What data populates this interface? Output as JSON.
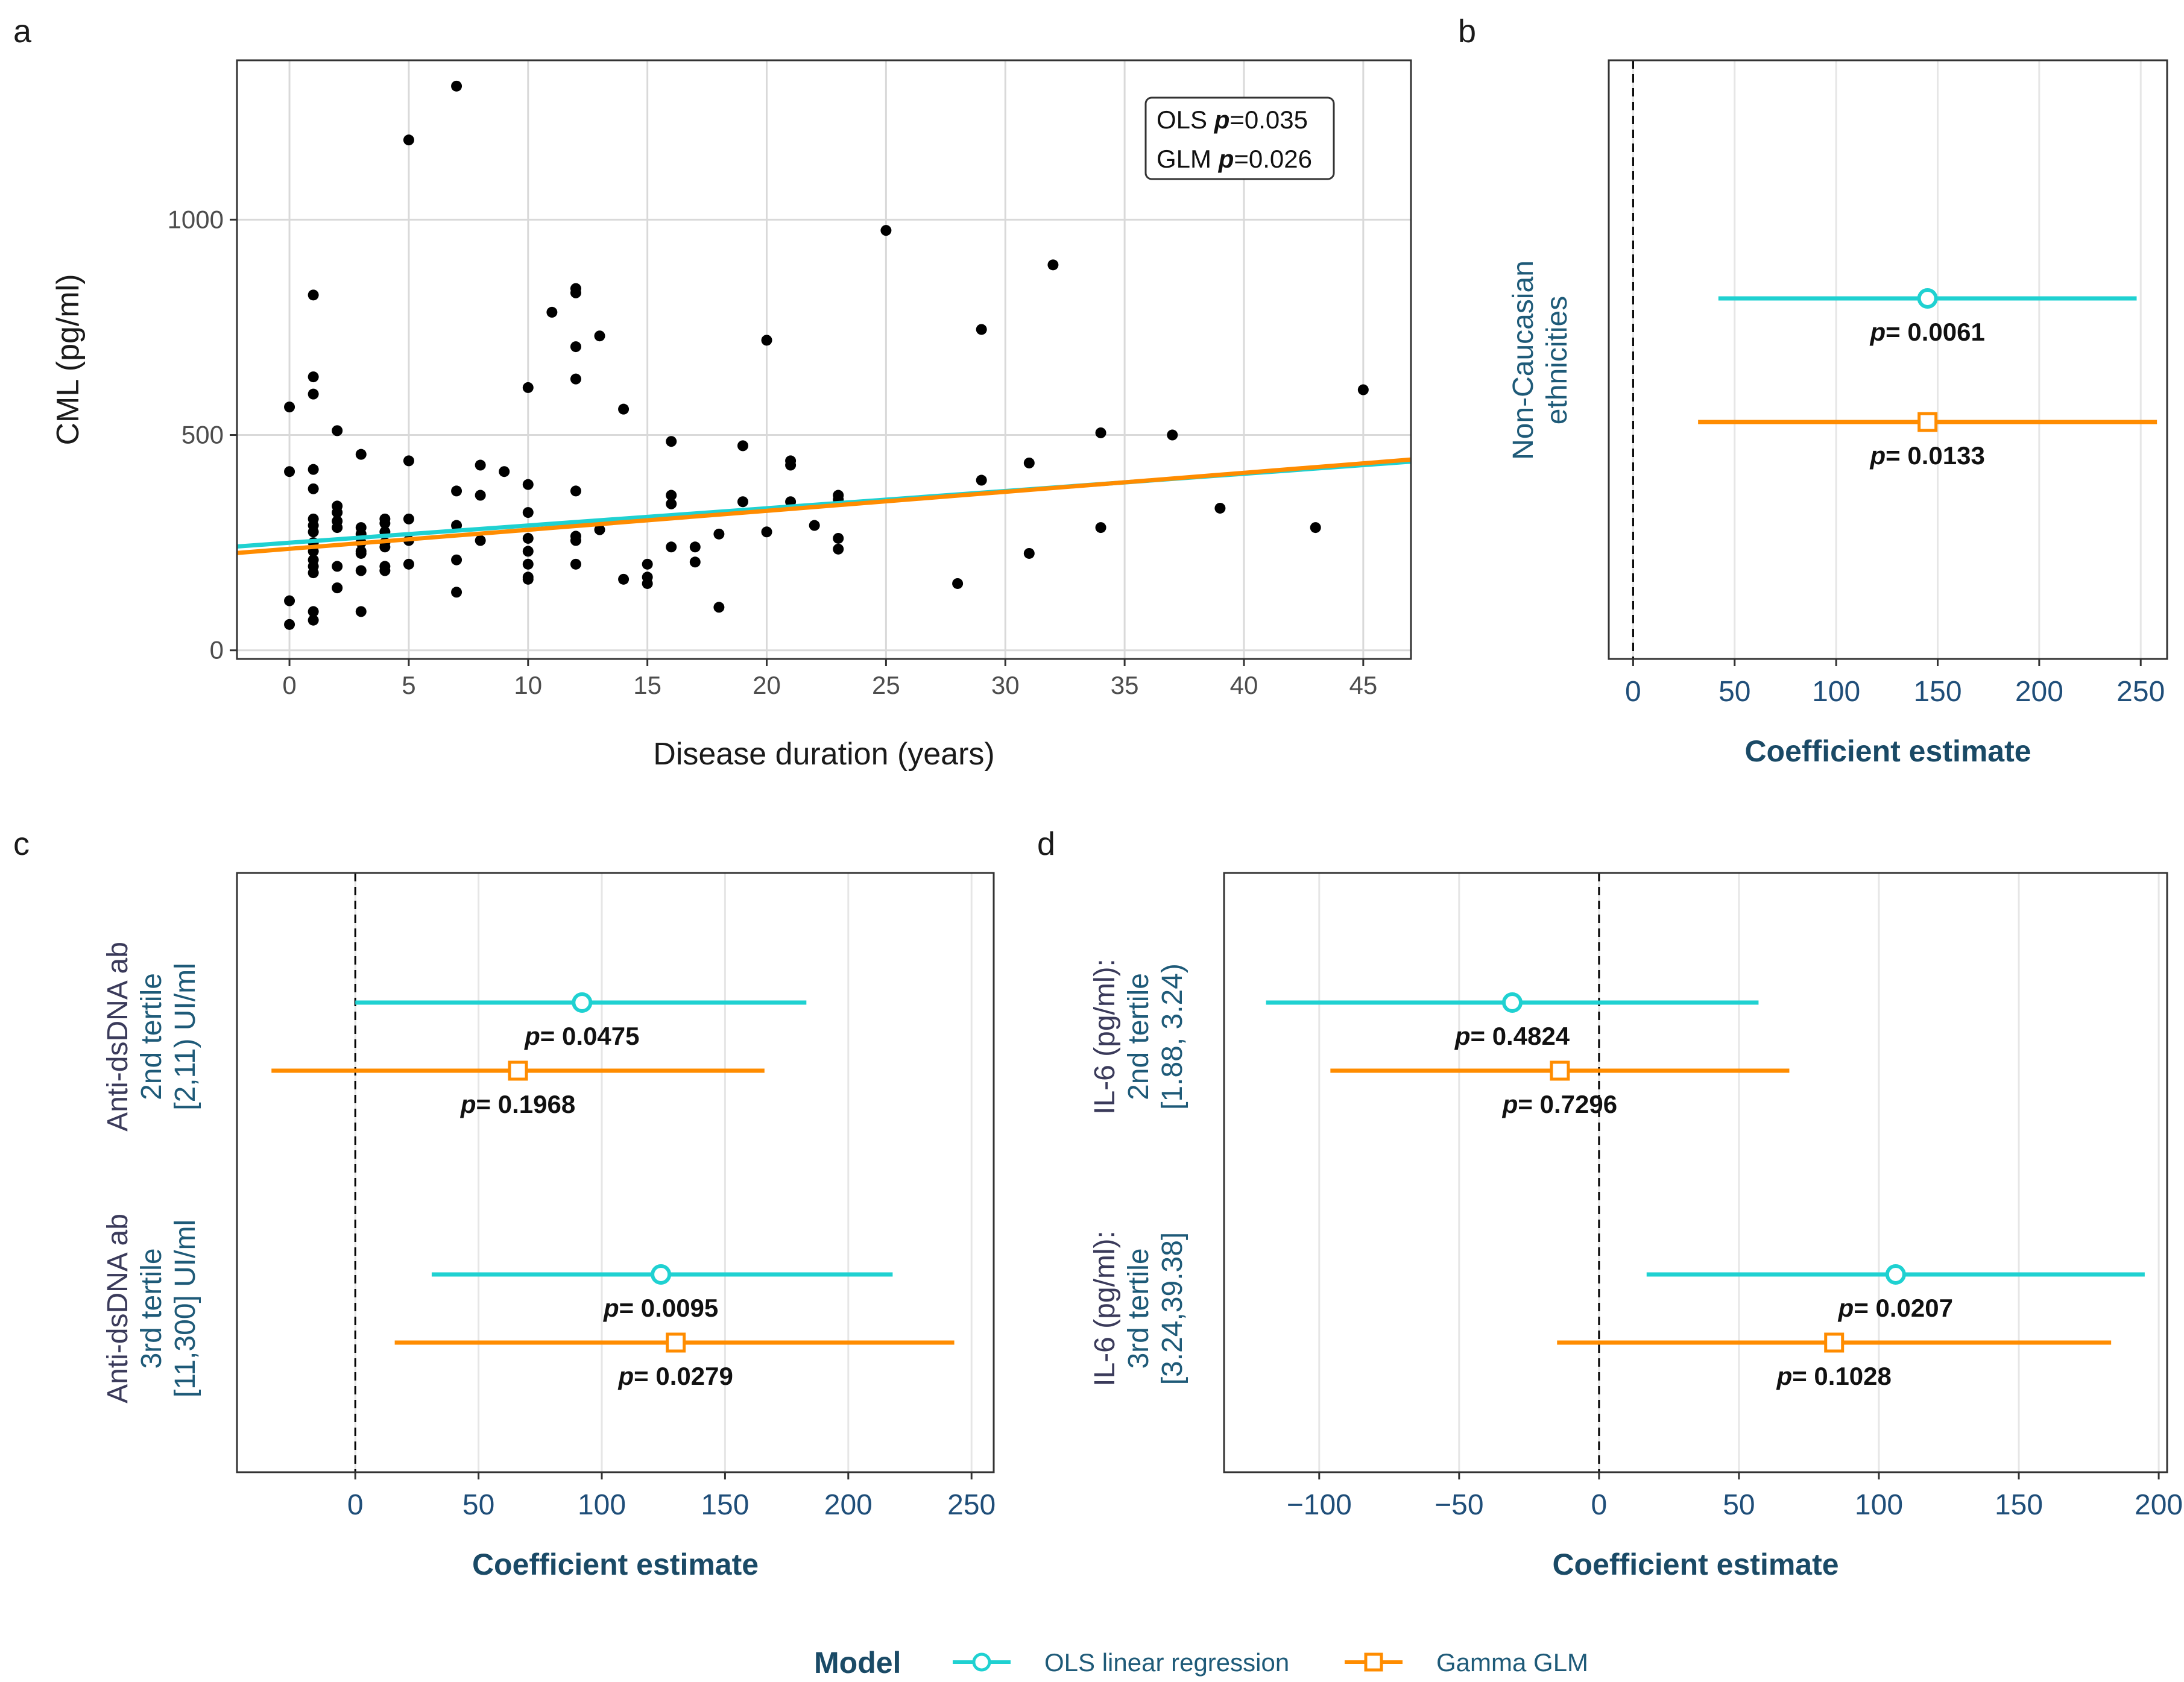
{
  "colors": {
    "ols": "#1fd1d1",
    "glm": "#ff8c00",
    "grid": "#d9d9d9",
    "point": "#000000"
  },
  "chart_data": [
    {
      "panel": "a",
      "type": "scatter",
      "xlabel": "Disease duration (years)",
      "ylabel": "CML (pg/ml)",
      "xlim": [
        -2.2,
        47
      ],
      "ylim": [
        -20,
        1370
      ],
      "xticks": [
        0,
        5,
        10,
        15,
        20,
        25,
        30,
        35,
        40,
        45
      ],
      "yticks": [
        0,
        500,
        1000
      ],
      "annotation": {
        "line1_model": "OLS",
        "line1_p": "p=0.035",
        "line2_model": "GLM",
        "line2_p": "p=0.026"
      },
      "points": [
        [
          0,
          565
        ],
        [
          0,
          415
        ],
        [
          0,
          115
        ],
        [
          0,
          60
        ],
        [
          1,
          825
        ],
        [
          1,
          635
        ],
        [
          1,
          595
        ],
        [
          1,
          420
        ],
        [
          1,
          375
        ],
        [
          1,
          305
        ],
        [
          1,
          290
        ],
        [
          1,
          275
        ],
        [
          1,
          250
        ],
        [
          1,
          230
        ],
        [
          1,
          210
        ],
        [
          1,
          195
        ],
        [
          1,
          180
        ],
        [
          1,
          90
        ],
        [
          1,
          70
        ],
        [
          2,
          510
        ],
        [
          2,
          335
        ],
        [
          2,
          320
        ],
        [
          2,
          300
        ],
        [
          2,
          285
        ],
        [
          2,
          195
        ],
        [
          2,
          145
        ],
        [
          3,
          455
        ],
        [
          3,
          285
        ],
        [
          3,
          270
        ],
        [
          3,
          250
        ],
        [
          3,
          230
        ],
        [
          3,
          225
        ],
        [
          3,
          185
        ],
        [
          3,
          90
        ],
        [
          4,
          305
        ],
        [
          4,
          295
        ],
        [
          4,
          275
        ],
        [
          4,
          250
        ],
        [
          4,
          240
        ],
        [
          4,
          195
        ],
        [
          4,
          185
        ],
        [
          5,
          1185
        ],
        [
          5,
          440
        ],
        [
          5,
          305
        ],
        [
          5,
          255
        ],
        [
          5,
          200
        ],
        [
          7,
          1310
        ],
        [
          7,
          370
        ],
        [
          7,
          290
        ],
        [
          7,
          210
        ],
        [
          7,
          135
        ],
        [
          8,
          430
        ],
        [
          8,
          360
        ],
        [
          8,
          255
        ],
        [
          9,
          415
        ],
        [
          10,
          610
        ],
        [
          10,
          385
        ],
        [
          10,
          320
        ],
        [
          10,
          260
        ],
        [
          10,
          230
        ],
        [
          10,
          200
        ],
        [
          10,
          170
        ],
        [
          10,
          165
        ],
        [
          11,
          785
        ],
        [
          12,
          840
        ],
        [
          12,
          830
        ],
        [
          12,
          705
        ],
        [
          12,
          630
        ],
        [
          12,
          370
        ],
        [
          12,
          265
        ],
        [
          12,
          255
        ],
        [
          12,
          200
        ],
        [
          13,
          730
        ],
        [
          13,
          280
        ],
        [
          14,
          560
        ],
        [
          14,
          165
        ],
        [
          15,
          200
        ],
        [
          15,
          170
        ],
        [
          15,
          155
        ],
        [
          16,
          485
        ],
        [
          16,
          360
        ],
        [
          16,
          340
        ],
        [
          16,
          240
        ],
        [
          17,
          240
        ],
        [
          17,
          205
        ],
        [
          18,
          270
        ],
        [
          18,
          100
        ],
        [
          19,
          475
        ],
        [
          19,
          345
        ],
        [
          20,
          720
        ],
        [
          20,
          275
        ],
        [
          21,
          440
        ],
        [
          21,
          430
        ],
        [
          21,
          345
        ],
        [
          22,
          290
        ],
        [
          23,
          360
        ],
        [
          23,
          350
        ],
        [
          23,
          260
        ],
        [
          23,
          235
        ],
        [
          25,
          975
        ],
        [
          28,
          155
        ],
        [
          29,
          745
        ],
        [
          29,
          395
        ],
        [
          31,
          435
        ],
        [
          31,
          225
        ],
        [
          32,
          895
        ],
        [
          34,
          505
        ],
        [
          34,
          285
        ],
        [
          37,
          500
        ],
        [
          39,
          330
        ],
        [
          43,
          285
        ],
        [
          45,
          605
        ]
      ],
      "fit_lines": [
        {
          "name": "OLS",
          "x": [
            -2.2,
            47
          ],
          "y": [
            241,
            438
          ]
        },
        {
          "name": "GLM",
          "x": [
            -2.2,
            47
          ],
          "y": [
            226,
            443
          ]
        }
      ]
    },
    {
      "panel": "b",
      "type": "forest",
      "xlabel": "Coefficient estimate",
      "xlim": [
        -12,
        263
      ],
      "xticks": [
        0,
        50,
        100,
        150,
        200,
        250
      ],
      "groups": [
        {
          "label_lines": [
            "Non-Caucasian",
            "ethnicities"
          ],
          "estimates": [
            {
              "model": "OLS",
              "est": 145,
              "lo": 42,
              "hi": 248,
              "p_label": "p",
              "p_value": "= 0.0061"
            },
            {
              "model": "GLM",
              "est": 145,
              "lo": 32,
              "hi": 258,
              "p_label": "p",
              "p_value": "= 0.0133"
            }
          ]
        }
      ]
    },
    {
      "panel": "c",
      "type": "forest",
      "xlabel": "Coefficient estimate",
      "xlim": [
        -48,
        259
      ],
      "xticks": [
        0,
        50,
        100,
        150,
        200,
        250
      ],
      "groups": [
        {
          "label_lines": [
            "Anti-dsDNA ab",
            "2nd tertile",
            "[2,11) UI/ml"
          ],
          "estimates": [
            {
              "model": "OLS",
              "est": 92,
              "lo": 0,
              "hi": 183,
              "p_label": "p",
              "p_value": "= 0.0475"
            },
            {
              "model": "GLM",
              "est": 66,
              "lo": -34,
              "hi": 166,
              "p_label": "p",
              "p_value": "= 0.1968"
            }
          ]
        },
        {
          "label_lines": [
            "Anti-dsDNA ab",
            "3rd tertile",
            "[11,300] UI/ml"
          ],
          "estimates": [
            {
              "model": "OLS",
              "est": 124,
              "lo": 31,
              "hi": 218,
              "p_label": "p",
              "p_value": "= 0.0095"
            },
            {
              "model": "GLM",
              "est": 130,
              "lo": 16,
              "hi": 243,
              "p_label": "p",
              "p_value": "= 0.0279"
            }
          ]
        }
      ]
    },
    {
      "panel": "d",
      "type": "forest",
      "xlabel": "Coefficient estimate",
      "xlim": [
        -134,
        203
      ],
      "xticks": [
        -100,
        -50,
        0,
        50,
        100,
        150,
        200
      ],
      "xtick_labels": [
        "−100",
        "−50",
        "0",
        "50",
        "100",
        "150",
        "200"
      ],
      "groups": [
        {
          "label_lines": [
            "IL-6  (pg/ml):",
            "2nd tertile",
            "[1.88,  3.24)"
          ],
          "estimates": [
            {
              "model": "OLS",
              "est": -31,
              "lo": -119,
              "hi": 57,
              "p_label": "p",
              "p_value": "= 0.4824"
            },
            {
              "model": "GLM",
              "est": -14,
              "lo": -96,
              "hi": 68,
              "p_label": "p",
              "p_value": "= 0.7296"
            }
          ]
        },
        {
          "label_lines": [
            "IL-6  (pg/ml):",
            "3rd tertile",
            "[3.24,39.38]"
          ],
          "estimates": [
            {
              "model": "OLS",
              "est": 106,
              "lo": 17,
              "hi": 195,
              "p_label": "p",
              "p_value": "= 0.0207"
            },
            {
              "model": "GLM",
              "est": 84,
              "lo": -15,
              "hi": 183,
              "p_label": "p",
              "p_value": "= 0.1028"
            }
          ]
        }
      ]
    }
  ],
  "legend": {
    "title": "Model",
    "items": [
      {
        "key": "OLS",
        "label": "OLS linear regression",
        "shape": "circle"
      },
      {
        "key": "GLM",
        "label": "Gamma GLM",
        "shape": "square"
      }
    ]
  }
}
